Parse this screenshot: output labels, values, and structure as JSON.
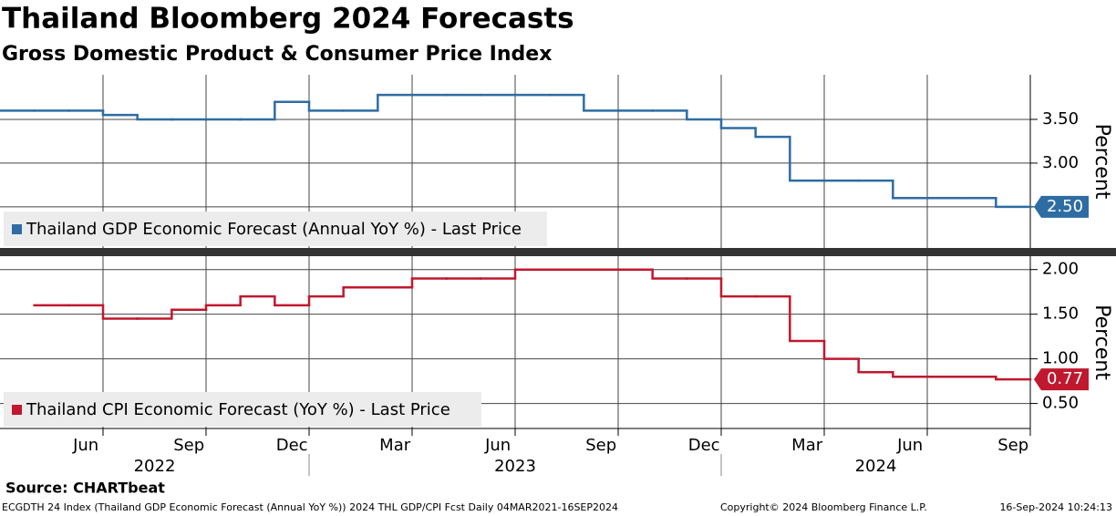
{
  "title": "Thailand Bloomberg 2024 Forecasts",
  "subtitle": "Gross Domestic Product & Consumer Price Index",
  "x_axis": {
    "xlim": [
      "2022-04",
      "2024-10"
    ],
    "xticks": [
      {
        "value": "2022-06",
        "label": "Jun"
      },
      {
        "value": "2022-09",
        "label": "Sep"
      },
      {
        "value": "2022-12",
        "label": "Dec"
      },
      {
        "value": "2023-03",
        "label": "Mar"
      },
      {
        "value": "2023-06",
        "label": "Jun"
      },
      {
        "value": "2023-09",
        "label": "Sep"
      },
      {
        "value": "2023-12",
        "label": "Dec"
      },
      {
        "value": "2024-03",
        "label": "Mar"
      },
      {
        "value": "2024-06",
        "label": "Jun"
      },
      {
        "value": "2024-09",
        "label": "Sep"
      }
    ],
    "years": [
      "2022",
      "2023",
      "2024"
    ]
  },
  "chart_data": [
    {
      "type": "line",
      "y_label": "Percent",
      "x": [
        "2022-04",
        "2022-05",
        "2022-06",
        "2022-07",
        "2022-08",
        "2022-09",
        "2022-10",
        "2022-11",
        "2022-12",
        "2023-01",
        "2023-02",
        "2023-03",
        "2023-04",
        "2023-05",
        "2023-06",
        "2023-07",
        "2023-08",
        "2023-09",
        "2023-10",
        "2023-11",
        "2023-12",
        "2024-01",
        "2024-02",
        "2024-03",
        "2024-04",
        "2024-05",
        "2024-06",
        "2024-07",
        "2024-08",
        "2024-09"
      ],
      "series": [
        {
          "name": "Thailand GDP Economic Forecast (Annual YoY %) - Last Price",
          "color": "#2e6ca4",
          "values": [
            3.6,
            3.6,
            3.6,
            3.55,
            3.5,
            3.5,
            3.5,
            3.5,
            3.7,
            3.6,
            3.6,
            3.78,
            3.78,
            3.78,
            3.78,
            3.78,
            3.78,
            3.6,
            3.6,
            3.6,
            3.5,
            3.4,
            3.3,
            2.8,
            2.8,
            2.8,
            2.6,
            2.6,
            2.6,
            2.5
          ],
          "value_labels": [
            null,
            null,
            null,
            null,
            null,
            null,
            null,
            null,
            null,
            null,
            null,
            null,
            null,
            null,
            null,
            null,
            null,
            null,
            null,
            null,
            null,
            null,
            null,
            null,
            null,
            null,
            null,
            null,
            null,
            "2.50"
          ]
        }
      ],
      "ylim": [
        2.03,
        4.01
      ],
      "yticks": [
        {
          "value": 2.5,
          "label": "2.50"
        },
        {
          "value": 3.0,
          "label": "3.00"
        },
        {
          "value": 3.5,
          "label": "3.50"
        }
      ],
      "grid": true,
      "legend": "lower left"
    },
    {
      "type": "line",
      "y_label": "Percent",
      "x": [
        "2022-04",
        "2022-05",
        "2022-06",
        "2022-07",
        "2022-08",
        "2022-09",
        "2022-10",
        "2022-11",
        "2022-12",
        "2023-01",
        "2023-02",
        "2023-03",
        "2023-04",
        "2023-05",
        "2023-06",
        "2023-07",
        "2023-08",
        "2023-09",
        "2023-10",
        "2023-11",
        "2023-12",
        "2024-01",
        "2024-02",
        "2024-03",
        "2024-04",
        "2024-05",
        "2024-06",
        "2024-07",
        "2024-08",
        "2024-09"
      ],
      "series": [
        {
          "name": "Thailand CPI Economic Forecast (YoY %) - Last Price",
          "color": "#c0182e",
          "values": [
            null,
            1.6,
            1.6,
            1.45,
            1.45,
            1.55,
            1.6,
            1.7,
            1.6,
            1.7,
            1.8,
            1.8,
            1.9,
            1.9,
            1.9,
            2.0,
            2.0,
            2.0,
            2.0,
            1.9,
            1.9,
            1.7,
            1.7,
            1.2,
            1.0,
            0.85,
            0.8,
            0.8,
            0.8,
            0.77
          ],
          "value_labels": [
            null,
            null,
            null,
            null,
            null,
            null,
            null,
            null,
            null,
            null,
            null,
            null,
            null,
            null,
            null,
            null,
            null,
            null,
            null,
            null,
            null,
            null,
            null,
            null,
            null,
            null,
            null,
            null,
            null,
            "0.77"
          ]
        }
      ],
      "ylim": [
        0.22,
        2.15
      ],
      "yticks": [
        {
          "value": 0.5,
          "label": "0.50"
        },
        {
          "value": 1.0,
          "label": "1.00"
        },
        {
          "value": 1.5,
          "label": "1.50"
        },
        {
          "value": 2.0,
          "label": "2.00"
        }
      ],
      "grid": true,
      "legend": "lower left"
    }
  ],
  "source": "Source: CHARTbeat",
  "footer": {
    "left": "ECGDTH 24 Index (Thailand GDP Economic Forecast (Annual YoY %)) 2024 THL GDP/CPI Fcst  Daily 04MAR2021-16SEP2024",
    "copyright": "Copyright© 2024 Bloomberg Finance L.P.",
    "timestamp": "16-Sep-2024 10:24:13"
  }
}
